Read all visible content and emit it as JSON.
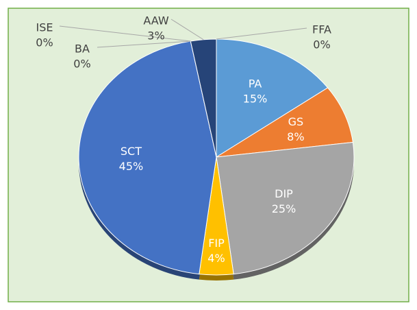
{
  "chart_data": {
    "type": "pie",
    "categories": [
      "FFA",
      "PA",
      "GS",
      "DIP",
      "FIP",
      "SCT",
      "BA",
      "ISE",
      "AAW"
    ],
    "values": [
      0,
      15,
      8,
      25,
      4,
      45,
      0,
      0,
      3
    ],
    "value_labels": [
      "0%",
      "15%",
      "8%",
      "25%",
      "4%",
      "45%",
      "0%",
      "0%",
      "3%"
    ],
    "colors": [
      "#70ad47",
      "#5b9bd5",
      "#ed7d31",
      "#a5a5a5",
      "#ffc000",
      "#4472c4",
      "#255e91",
      "#9e480e",
      "#264478"
    ]
  }
}
